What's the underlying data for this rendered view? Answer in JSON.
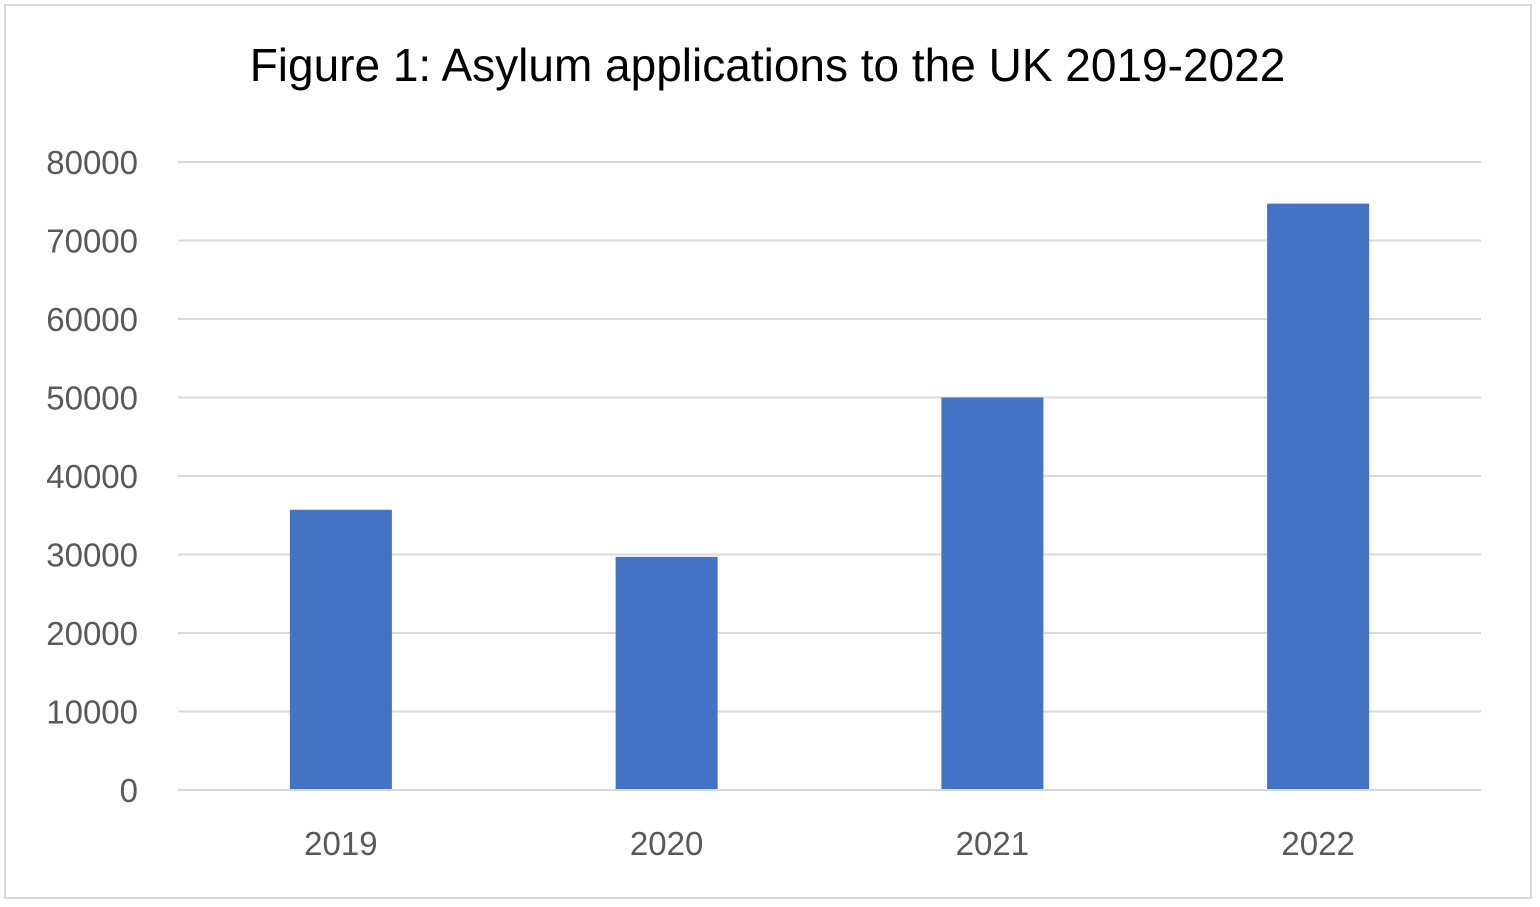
{
  "chart_data": {
    "type": "bar",
    "title": "Figure 1: Asylum applications to the UK 2019-2022",
    "categories": [
      "2019",
      "2020",
      "2021",
      "2022"
    ],
    "values": [
      35700,
      29700,
      50000,
      74700
    ],
    "ylim": [
      0,
      80000
    ],
    "yticks": [
      "0",
      "10000",
      "20000",
      "30000",
      "40000",
      "50000",
      "60000",
      "70000",
      "80000"
    ],
    "xlabel": "",
    "ylabel": "",
    "grid": true,
    "legend": "none",
    "bar_color": "#4472C4",
    "grid_color": "#d9d9d9"
  }
}
